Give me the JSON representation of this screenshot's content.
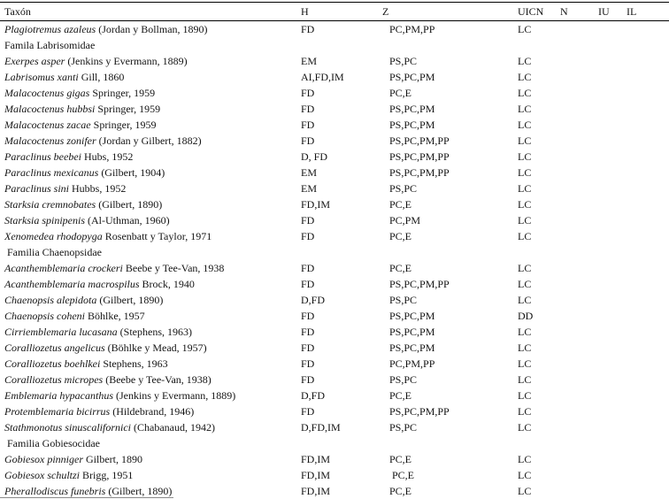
{
  "table": {
    "columns": [
      {
        "key": "taxon",
        "label": "Taxón"
      },
      {
        "key": "h",
        "label": "H"
      },
      {
        "key": "z",
        "label": "Z"
      },
      {
        "key": "uicn",
        "label": "UICN"
      },
      {
        "key": "n",
        "label": "N"
      },
      {
        "key": "iu",
        "label": "IU"
      },
      {
        "key": "il",
        "label": "IL"
      }
    ],
    "rows": [
      {
        "type": "species",
        "name": "Plagiotremus azaleus",
        "authority": "(Jordan y Bollman, 1890)",
        "h": "FD",
        "z": "PC,PM,PP",
        "uicn": "LC",
        "n": "",
        "iu": "",
        "il": ""
      },
      {
        "type": "family",
        "label": "Famila Labrisomidae"
      },
      {
        "type": "species",
        "name": "Exerpes asper",
        "authority": "(Jenkins y Evermann, 1889)",
        "h": "EM",
        "z": "PS,PC",
        "uicn": "LC",
        "n": "",
        "iu": "",
        "il": ""
      },
      {
        "type": "species",
        "name": "Labrisomus xanti",
        "authority": "Gill, 1860",
        "h": "AI,FD,IM",
        "z": "PS,PC,PM",
        "uicn": "LC",
        "n": "",
        "iu": "",
        "il": ""
      },
      {
        "type": "species",
        "name": "Malacoctenus gigas",
        "authority": "Springer, 1959",
        "h": "FD",
        "z": "PC,E",
        "uicn": "LC",
        "n": "",
        "iu": "",
        "il": ""
      },
      {
        "type": "species",
        "name": "Malacoctenus hubbsi",
        "authority": "Springer, 1959",
        "h": "FD",
        "z": "PS,PC,PM",
        "uicn": "LC",
        "n": "",
        "iu": "",
        "il": ""
      },
      {
        "type": "species",
        "name": "Malacoctenus zacae",
        "authority": "Springer, 1959",
        "h": "FD",
        "z": "PS,PC,PM",
        "uicn": "LC",
        "n": "",
        "iu": "",
        "il": ""
      },
      {
        "type": "species",
        "name": "Malacoctenus zonifer",
        "authority": "(Jordan y Gilbert, 1882)",
        "h": "FD",
        "z": "PS,PC,PM,PP",
        "uicn": "LC",
        "n": "",
        "iu": "",
        "il": ""
      },
      {
        "type": "species",
        "name": "Paraclinus beebei",
        "authority": "Hubs, 1952",
        "h": "D, FD",
        "z": "PS,PC,PM,PP",
        "uicn": "LC",
        "n": "",
        "iu": "",
        "il": ""
      },
      {
        "type": "species",
        "name": "Paraclinus mexicanus",
        "authority": "(Gilbert, 1904)",
        "h": "EM",
        "z": "PS,PC,PM,PP",
        "uicn": "LC",
        "n": "",
        "iu": "",
        "il": ""
      },
      {
        "type": "species",
        "name": "Paraclinus sini",
        "authority": "Hubbs, 1952",
        "h": "EM",
        "z": "PS,PC",
        "uicn": "LC",
        "n": "",
        "iu": "",
        "il": ""
      },
      {
        "type": "species",
        "name": "Starksia cremnobates",
        "authority": "(Gilbert, 1890)",
        "h": "FD,IM",
        "z": "PC,E",
        "uicn": "LC",
        "n": "",
        "iu": "",
        "il": ""
      },
      {
        "type": "species",
        "name": "Starksia spinipenis",
        "authority": "(Al-Uthman, 1960)",
        "h": "FD",
        "z": "PC,PM",
        "uicn": "LC",
        "n": "",
        "iu": "",
        "il": ""
      },
      {
        "type": "species",
        "name": "Xenomedea rhodopyga",
        "authority": "Rosenbatt y Taylor, 1971",
        "h": "FD",
        "z": "PC,E",
        "uicn": "LC",
        "n": "",
        "iu": "",
        "il": ""
      },
      {
        "type": "family",
        "label": " Familia Chaenopsidae"
      },
      {
        "type": "species",
        "name": "Acanthemblemaria crockeri",
        "authority": "Beebe y Tee-Van, 1938",
        "h": "FD",
        "z": "PC,E",
        "uicn": "LC",
        "n": "",
        "iu": "",
        "il": ""
      },
      {
        "type": "species",
        "name": "Acanthemblemaria macrospilus",
        "authority": "Brock, 1940",
        "h": "FD",
        "z": "PS,PC,PM,PP",
        "uicn": "LC",
        "n": "",
        "iu": "",
        "il": ""
      },
      {
        "type": "species",
        "name": "Chaenopsis alepidota",
        "authority": "(Gilbert, 1890)",
        "h": "D,FD",
        "z": "PS,PC",
        "uicn": "LC",
        "n": "",
        "iu": "",
        "il": ""
      },
      {
        "type": "species",
        "name": "Chaenopsis coheni",
        "authority": "Böhlke, 1957",
        "h": "FD",
        "z": "PS,PC,PM",
        "uicn": "DD",
        "n": "",
        "iu": "",
        "il": ""
      },
      {
        "type": "species",
        "name": "Cirriemblemaria lucasana",
        "authority": "(Stephens, 1963)",
        "h": "FD",
        "z": "PS,PC,PM",
        "uicn": "LC",
        "n": "",
        "iu": "",
        "il": ""
      },
      {
        "type": "species",
        "name": "Coralliozetus angelicus",
        "authority": "(Böhlke y Mead, 1957)",
        "h": "FD",
        "z": "PS,PC,PM",
        "uicn": "LC",
        "n": "",
        "iu": "",
        "il": ""
      },
      {
        "type": "species",
        "name": "Coralliozetus boehlkei",
        "authority": "Stephens, 1963",
        "h": "FD",
        "z": "PC,PM,PP",
        "uicn": "LC",
        "n": "",
        "iu": "",
        "il": ""
      },
      {
        "type": "species",
        "name": "Coralliozetus micropes",
        "authority": "(Beebe y Tee-Van, 1938)",
        "h": "FD",
        "z": "PS,PC",
        "uicn": "LC",
        "n": "",
        "iu": "",
        "il": ""
      },
      {
        "type": "species",
        "name": "Emblemaria hypacanthus",
        "authority": "(Jenkins y Evermann, 1889)",
        "h": "D,FD",
        "z": "PC,E",
        "uicn": "LC",
        "n": "",
        "iu": "",
        "il": ""
      },
      {
        "type": "species",
        "name": "Protemblemaria bicirrus",
        "authority": "(Hildebrand, 1946)",
        "h": "FD",
        "z": "PS,PC,PM,PP",
        "uicn": "LC",
        "n": "",
        "iu": "",
        "il": ""
      },
      {
        "type": "species",
        "name": "Stathmonotus sinuscalifornici",
        "authority": "(Chabanaud, 1942)",
        "h": "D,FD,IM",
        "z": "PS,PC",
        "uicn": "LC",
        "n": "",
        "iu": "",
        "il": ""
      },
      {
        "type": "family",
        "label": " Familia Gobiesocidae"
      },
      {
        "type": "species",
        "name": "Gobiesox pinniger",
        "authority": "Gilbert, 1890",
        "h": "FD,IM",
        "z": "PC,E",
        "uicn": "LC",
        "n": "",
        "iu": "",
        "il": ""
      },
      {
        "type": "species",
        "name": "Gobiesox schultzi",
        "authority": "Brigg, 1951",
        "h": "FD,IM",
        "z": " PC,E",
        "uicn": "LC",
        "n": "",
        "iu": "",
        "il": ""
      },
      {
        "type": "species",
        "name": "Pherallodiscus funebris",
        "authority": "(Gilbert, 1890)",
        "h": "FD,IM",
        "z": "PC,E",
        "uicn": "LC",
        "n": "",
        "iu": "",
        "il": ""
      }
    ]
  }
}
